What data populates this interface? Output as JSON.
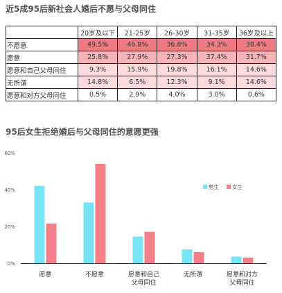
{
  "titles": {
    "table_title": "近5成95后新社会人婚后不愿与父母同住",
    "chart_title": "95后女生拒绝婚后与父母同住的意愿更强"
  },
  "table": {
    "columns": [
      "20岁及以下",
      "21-25岁",
      "26-30岁",
      "31-35岁",
      "36岁及以上"
    ],
    "rows": [
      {
        "label": "不愿意",
        "cells": [
          "49.5%",
          "46.8%",
          "36.8%",
          "34.3%",
          "38.4%"
        ],
        "shade": "#ef7a84"
      },
      {
        "label": "愿意",
        "cells": [
          "25.8%",
          "27.9%",
          "27.3%",
          "37.4%",
          "31.7%"
        ],
        "shade": "#f6b3b8"
      },
      {
        "label": "愿意和自己父母同住",
        "cells": [
          "9.3%",
          "15.9%",
          "19.8%",
          "16.1%",
          "14.6%"
        ],
        "shade": "#fbdadd"
      },
      {
        "label": "无所谓",
        "cells": [
          "14.8%",
          "6.5%",
          "12.3%",
          "9.1%",
          "14.6%"
        ],
        "shade": "#fbdadd"
      },
      {
        "label": "愿意和对方父母同住",
        "cells": [
          "0.5%",
          "2.9%",
          "4.0%",
          "3.0%",
          "0.6%"
        ],
        "shade": "#ffffff"
      }
    ]
  },
  "chart_data": {
    "type": "bar",
    "categories": [
      "愿意",
      "不愿意",
      "愿意和自己\n父母同住",
      "无所谓",
      "愿意和对方\n父母同住"
    ],
    "series": [
      {
        "name": "男生",
        "color": "#78e3f5",
        "values": [
          42,
          33,
          14.5,
          7.5,
          3.5
        ]
      },
      {
        "name": "女生",
        "color": "#f47f89",
        "values": [
          21.5,
          54,
          17,
          6,
          3
        ]
      }
    ],
    "yticks": [
      "0%",
      "20%",
      "40%",
      "60%"
    ],
    "ylim": [
      0,
      60
    ],
    "legend_position": "right",
    "title": "95后女生拒绝婚后与父母同住的意愿更强"
  }
}
